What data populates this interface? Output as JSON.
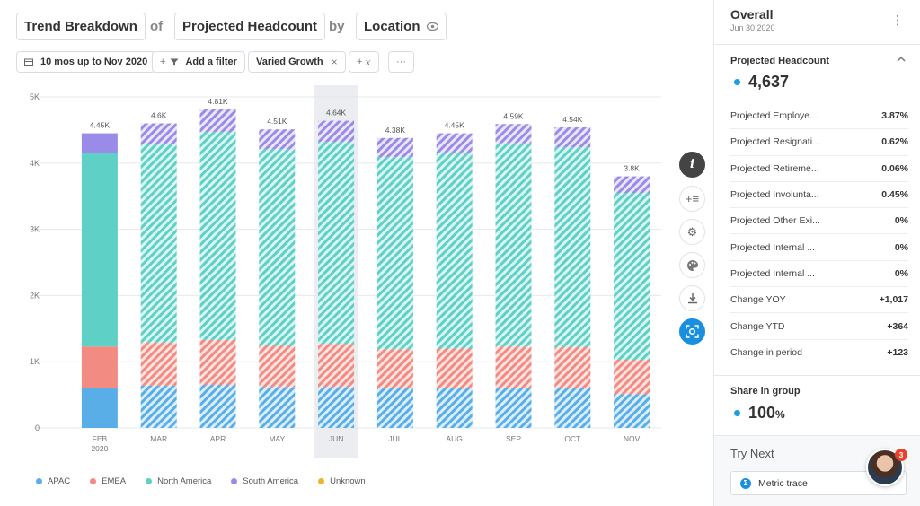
{
  "header": {
    "breakdown": "Trend Breakdown",
    "of": "of",
    "metric": "Projected Headcount",
    "by": "by",
    "dimension": "Location"
  },
  "controls": {
    "date_range": "10 mos up to Nov 2020",
    "add_filter": "Add a filter",
    "scenario": "Varied Growth",
    "more": "···"
  },
  "legend": [
    {
      "name": "APAC",
      "color": "#5aaee8"
    },
    {
      "name": "EMEA",
      "color": "#f28b82"
    },
    {
      "name": "North America",
      "color": "#5fd0c5"
    },
    {
      "name": "South America",
      "color": "#9b8be8"
    },
    {
      "name": "Unknown",
      "color": "#f0b429"
    }
  ],
  "chart_data": {
    "type": "bar",
    "stacked": true,
    "categories": [
      "FEB\n2020",
      "MAR",
      "APR",
      "MAY",
      "JUN",
      "JUL",
      "AUG",
      "SEP",
      "OCT",
      "NOV"
    ],
    "series": [
      {
        "name": "APAC",
        "values": [
          610,
          640,
          650,
          620,
          620,
          600,
          600,
          610,
          600,
          510
        ]
      },
      {
        "name": "EMEA",
        "values": [
          620,
          650,
          680,
          620,
          650,
          590,
          600,
          620,
          620,
          520
        ]
      },
      {
        "name": "North America",
        "values": [
          2920,
          3000,
          3140,
          2970,
          3050,
          2900,
          2960,
          3070,
          3020,
          2520
        ]
      },
      {
        "name": "South America",
        "values": [
          300,
          310,
          340,
          300,
          320,
          290,
          290,
          290,
          300,
          250
        ]
      },
      {
        "name": "Unknown",
        "values": [
          0,
          0,
          0,
          0,
          0,
          0,
          0,
          0,
          0,
          0
        ]
      }
    ],
    "totals": [
      "4.45K",
      "4.6K",
      "4.81K",
      "4.51K",
      "4.64K",
      "4.38K",
      "4.45K",
      "4.59K",
      "4.54K",
      "3.8K"
    ],
    "projected_from_index": 1,
    "highlight_index": 4,
    "ylim": [
      0,
      5000
    ],
    "yticks": [
      0,
      1000,
      2000,
      3000,
      4000,
      5000
    ],
    "ytick_labels": [
      "0",
      "1K",
      "2K",
      "3K",
      "4K",
      "5K"
    ],
    "xlabel": "",
    "ylabel": ""
  },
  "panel": {
    "title": "Overall",
    "date": "Jun 30 2020",
    "metric_title": "Projected Headcount",
    "metric_value": "4,637",
    "rows": [
      {
        "label": "Projected Employe...",
        "value": "3.87%"
      },
      {
        "label": "Projected Resignati...",
        "value": "0.62%"
      },
      {
        "label": "Projected Retireme...",
        "value": "0.06%"
      },
      {
        "label": "Projected Involunta...",
        "value": "0.45%"
      },
      {
        "label": "Projected Other Exi...",
        "value": "0%"
      },
      {
        "label": "Projected Internal ...",
        "value": "0%"
      },
      {
        "label": "Projected Internal ...",
        "value": "0%"
      },
      {
        "label": "Change YOY",
        "value": "+1,017"
      },
      {
        "label": "Change YTD",
        "value": "+364"
      },
      {
        "label": "Change in period",
        "value": "+123"
      }
    ],
    "share_title": "Share in group",
    "share_value": "100",
    "share_unit": "%",
    "try_next_title": "Try Next",
    "try_next_button": "Metric trace",
    "notification_count": "3"
  }
}
